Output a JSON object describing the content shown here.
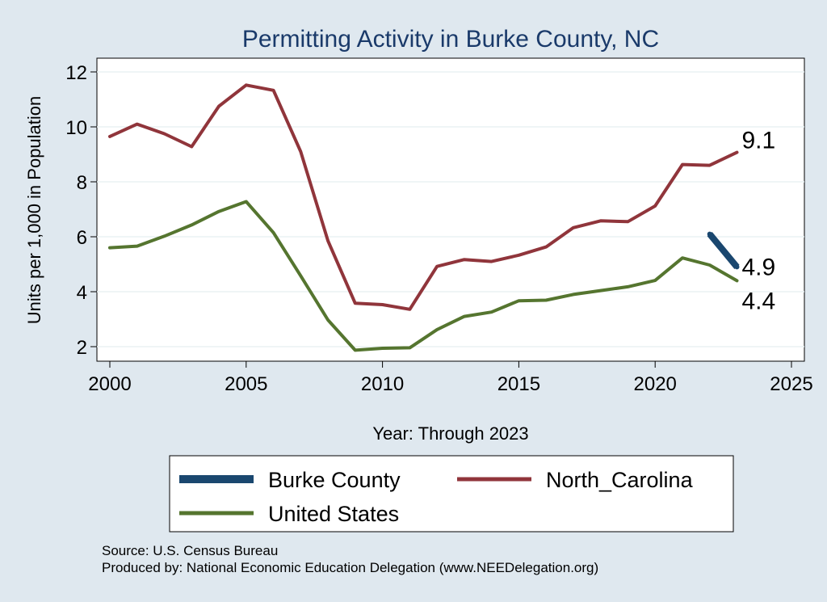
{
  "chart_data": {
    "type": "line",
    "title": "Permitting Activity in Burke County, NC",
    "xlabel": "Year: Through 2023",
    "ylabel": "Units per 1,000 in Population",
    "xlim": [
      2000,
      2025
    ],
    "ylim": [
      1.5,
      12.5
    ],
    "x_ticks": [
      2000,
      2005,
      2010,
      2015,
      2020,
      2025
    ],
    "y_ticks": [
      2,
      4,
      6,
      8,
      10,
      12
    ],
    "grid": true,
    "legend_position": "bottom",
    "series": [
      {
        "name": "Burke County",
        "color": "#1a476f",
        "x": [
          2022,
          2023
        ],
        "values": [
          6.1,
          4.9
        ],
        "end_label": "4.9"
      },
      {
        "name": "North_Carolina",
        "color": "#90353b",
        "x": [
          2000,
          2001,
          2002,
          2003,
          2004,
          2005,
          2006,
          2007,
          2008,
          2009,
          2010,
          2011,
          2012,
          2013,
          2014,
          2015,
          2016,
          2017,
          2018,
          2019,
          2020,
          2021,
          2022,
          2023
        ],
        "values": [
          9.65,
          10.1,
          9.75,
          9.28,
          10.75,
          11.52,
          11.33,
          9.1,
          5.85,
          3.58,
          3.53,
          3.36,
          4.92,
          5.17,
          5.1,
          5.33,
          5.63,
          6.33,
          6.58,
          6.55,
          7.12,
          8.63,
          8.6,
          9.07
        ],
        "end_label": "9.1"
      },
      {
        "name": "United States",
        "color": "#55752f",
        "x": [
          2000,
          2001,
          2002,
          2003,
          2004,
          2005,
          2006,
          2007,
          2008,
          2009,
          2010,
          2011,
          2012,
          2013,
          2014,
          2015,
          2016,
          2017,
          2018,
          2019,
          2020,
          2021,
          2022,
          2023
        ],
        "values": [
          5.6,
          5.66,
          6.02,
          6.43,
          6.92,
          7.28,
          6.15,
          4.58,
          2.97,
          1.87,
          1.94,
          1.96,
          2.62,
          3.1,
          3.26,
          3.67,
          3.69,
          3.9,
          4.04,
          4.18,
          4.41,
          5.23,
          4.97,
          4.4
        ],
        "end_label": "4.4"
      }
    ]
  },
  "footer": {
    "source": "Source: U.S. Census Bureau",
    "produced_by": "Produced by: National Economic Education Delegation (www.NEEDelegation.org)"
  }
}
